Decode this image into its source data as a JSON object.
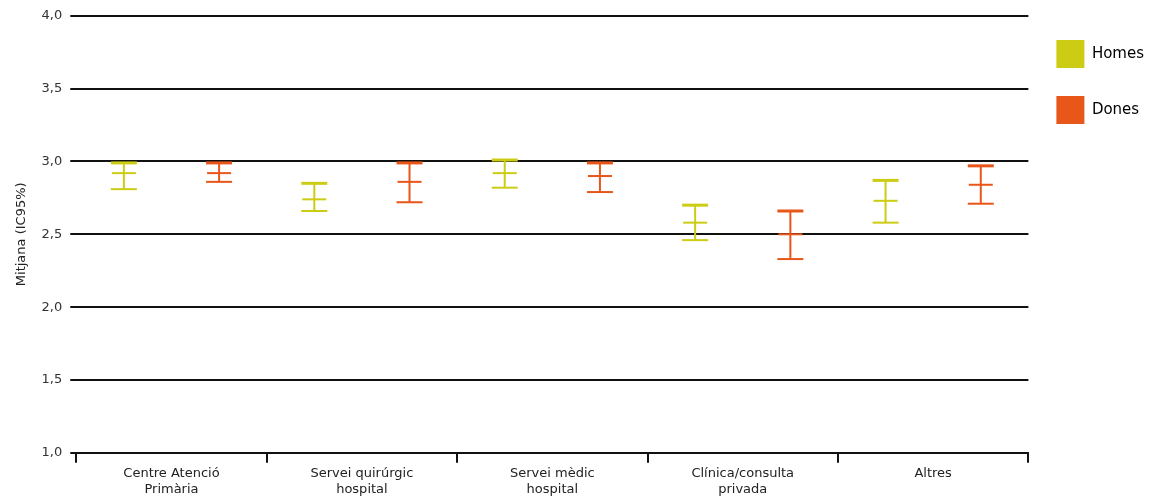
{
  "chart_data": {
    "type": "box",
    "ylabel": "Mitjana (IC95%)",
    "categories": [
      "Centre Atenció Primària",
      "Servei quirúrgic hospital",
      "Servei mèdic hospital",
      "Clínica/consulta privada",
      "Altres"
    ],
    "series": [
      {
        "name": "Homes",
        "color": "#cccc14",
        "boxes": [
          {
            "low": 2.81,
            "q1": 2.92,
            "median": 2.92,
            "q3": 2.92,
            "high": 2.99
          },
          {
            "low": 2.66,
            "q1": 2.74,
            "median": 2.74,
            "q3": 2.74,
            "high": 2.85
          },
          {
            "low": 2.82,
            "q1": 2.92,
            "median": 2.92,
            "q3": 2.92,
            "high": 3.01
          },
          {
            "low": 2.46,
            "q1": 2.58,
            "median": 2.58,
            "q3": 2.58,
            "high": 2.7
          },
          {
            "low": 2.58,
            "q1": 2.73,
            "median": 2.73,
            "q3": 2.73,
            "high": 2.87
          }
        ]
      },
      {
        "name": "Dones",
        "color": "#e8561a",
        "boxes": [
          {
            "low": 2.86,
            "q1": 2.92,
            "median": 2.92,
            "q3": 2.92,
            "high": 2.99
          },
          {
            "low": 2.72,
            "q1": 2.86,
            "median": 2.86,
            "q3": 2.86,
            "high": 2.99
          },
          {
            "low": 2.79,
            "q1": 2.9,
            "median": 2.9,
            "q3": 2.9,
            "high": 2.99
          },
          {
            "low": 2.33,
            "q1": 2.5,
            "median": 2.5,
            "q3": 2.5,
            "high": 2.66
          },
          {
            "low": 2.71,
            "q1": 2.84,
            "median": 2.84,
            "q3": 2.84,
            "high": 2.97
          }
        ]
      }
    ],
    "ylim": [
      1,
      4
    ],
    "yticks": [
      {
        "value": 1,
        "label": "1,0"
      },
      {
        "value": 1.5,
        "label": "1,5"
      },
      {
        "value": 2,
        "label": "2,0"
      },
      {
        "value": 2.5,
        "label": "2,5"
      },
      {
        "value": 3,
        "label": "3,0"
      },
      {
        "value": 3.5,
        "label": "3,5"
      },
      {
        "value": 4,
        "label": "4,0"
      }
    ],
    "grid": "y",
    "legend": "top right"
  }
}
